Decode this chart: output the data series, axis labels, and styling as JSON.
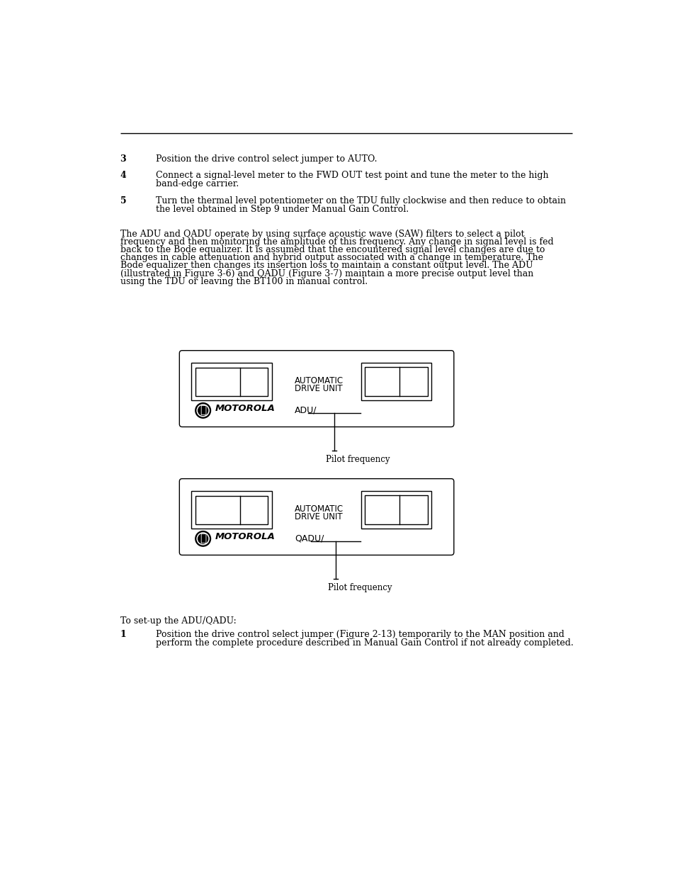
{
  "background_color": "#ffffff",
  "line_color": "#000000",
  "text_color": "#000000",
  "body_font_size": 9.0,
  "items": [
    {
      "num": "3",
      "text": "Position the drive control select jumper to AUTO."
    },
    {
      "num": "4",
      "text": "Connect a signal-level meter to the FWD OUT test point and tune the meter to the high\nband-edge carrier."
    },
    {
      "num": "5",
      "text": "Turn the thermal level potentiometer on the TDU fully clockwise and then reduce to obtain\nthe level obtained in Step 9 under Manual Gain Control."
    }
  ],
  "paragraph_lines": [
    "The ADU and QADU operate by using surface acoustic wave (SAW) filters to select a pilot",
    "frequency and then monitoring the amplitude of this frequency. Any change in signal level is fed",
    "back to the Bode equalizer. It is assumed that the encountered signal level changes are due to",
    "changes in cable attenuation and hybrid output associated with a change in temperature. The",
    "Bode equalizer then changes its insertion loss to maintain a constant output level. The ADU",
    "(illustrated in Figure 3-6) and QADU (Figure 3-7) maintain a more precise output level than",
    "using the TDU or leaving the BT100 in manual control."
  ],
  "diagram1_label": "ADU/",
  "diagram2_label": "QADU/",
  "pilot_freq_label": "Pilot frequency",
  "bottom_text1": "To set-up the ADU/QADU:",
  "bottom_item1_num": "1",
  "bottom_item1_text": "Position the drive control select jumper (Figure 2-13) temporarily to the MAN position and\nperform the complete procedure described in Manual Gain Control if not already completed."
}
